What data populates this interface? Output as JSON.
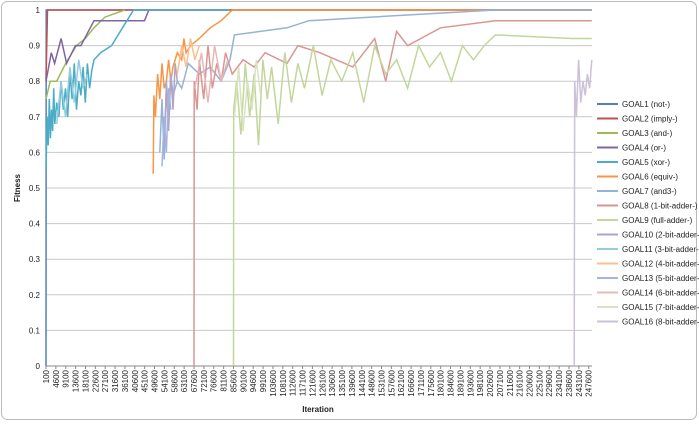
{
  "chart_data": {
    "type": "line",
    "xlabel": "Iteration",
    "ylabel": "Fitness",
    "xlim": [
      100,
      249100
    ],
    "ylim": [
      0,
      1
    ],
    "grid": true,
    "legend": "right",
    "xticks": [
      100,
      4600,
      9100,
      13600,
      18100,
      22600,
      27100,
      31600,
      36100,
      40600,
      45100,
      49600,
      54100,
      58600,
      63100,
      67600,
      72100,
      76600,
      81100,
      85600,
      90100,
      94600,
      99100,
      103600,
      108100,
      112600,
      117100,
      121600,
      126100,
      130600,
      135100,
      139600,
      144100,
      148600,
      153100,
      157600,
      162100,
      166600,
      171100,
      175600,
      180100,
      184600,
      189100,
      193600,
      198100,
      202600,
      207100,
      211600,
      216100,
      220600,
      225100,
      229600,
      234100,
      238600,
      243100,
      247600
    ],
    "yticks": [
      0,
      0.1,
      0.2,
      0.3,
      0.4,
      0.5,
      0.6,
      0.7,
      0.8,
      0.9,
      1
    ],
    "series": [
      {
        "name": "GOAL1 (not-)",
        "color": "#4f81bd",
        "x": [
          100,
          200,
          249000
        ],
        "values": [
          0,
          1,
          1
        ]
      },
      {
        "name": "GOAL2 (imply-)",
        "color": "#c0504d",
        "x": [
          100,
          800,
          249000
        ],
        "values": [
          0.8,
          1,
          1
        ]
      },
      {
        "name": "GOAL3 (and-)",
        "color": "#9bbb59",
        "x": [
          100,
          2000,
          5000,
          9100,
          14000,
          18000,
          22000,
          27000,
          36000
        ],
        "values": [
          0.75,
          0.8,
          0.8,
          0.85,
          0.9,
          0.92,
          0.95,
          0.98,
          1
        ]
      },
      {
        "name": "GOAL4 (or-)",
        "color": "#8064a2",
        "x": [
          100,
          2500,
          4000,
          7000,
          9500,
          13500,
          16000,
          22000,
          45000,
          47000
        ],
        "values": [
          0.8,
          0.88,
          0.85,
          0.92,
          0.85,
          0.9,
          0.9,
          0.97,
          0.97,
          1
        ]
      },
      {
        "name": "GOAL5 (xor-)",
        "color": "#4bacc6",
        "x": [
          100,
          600,
          1100,
          1600,
          2100,
          2600,
          3100,
          3600,
          4100,
          5000,
          6000,
          7000,
          8000,
          9000,
          10000,
          11000,
          12000,
          13000,
          14000,
          15000,
          16000,
          17000,
          18000,
          19000,
          20000,
          21000,
          22000,
          25000,
          30000,
          35000,
          40000,
          84000
        ],
        "values": [
          0.55,
          0.7,
          0.62,
          0.75,
          0.64,
          0.72,
          0.66,
          0.78,
          0.68,
          0.74,
          0.7,
          0.8,
          0.72,
          0.78,
          0.7,
          0.82,
          0.75,
          0.85,
          0.72,
          0.8,
          0.76,
          0.84,
          0.74,
          0.85,
          0.78,
          0.83,
          0.86,
          0.88,
          0.9,
          0.95,
          1,
          1
        ]
      },
      {
        "name": "GOAL6 (equiv-)",
        "color": "#f79646",
        "x": [
          49000,
          49300,
          50000,
          51000,
          52000,
          53000,
          54000,
          55000,
          56000,
          57000,
          58000,
          60000,
          62000,
          63000,
          64000,
          66000,
          70000,
          75000,
          80000,
          85000,
          249000
        ],
        "values": [
          0.54,
          0.76,
          0.7,
          0.82,
          0.75,
          0.85,
          0.78,
          0.8,
          0.86,
          0.8,
          0.84,
          0.88,
          0.86,
          0.92,
          0.88,
          0.9,
          0.92,
          0.95,
          0.97,
          1,
          1
        ]
      },
      {
        "name": "GOAL7 (and3-)",
        "color": "#95b3d7",
        "x": [
          52000,
          53000,
          54000,
          55000,
          56000,
          57000,
          58000,
          60000,
          62000,
          65000,
          70000,
          75000,
          80000,
          84000,
          86000,
          110000,
          120000,
          205000,
          249000
        ],
        "values": [
          0.6,
          0.75,
          0.58,
          0.8,
          0.7,
          0.82,
          0.76,
          0.8,
          0.78,
          0.85,
          0.82,
          0.84,
          0.8,
          0.86,
          0.93,
          0.95,
          0.97,
          1,
          1
        ]
      },
      {
        "name": "GOAL8 (1-bit-adder-)",
        "color": "#d99694",
        "x": [
          67600,
          67700,
          69000,
          70000,
          72000,
          74000,
          76000,
          78000,
          80000,
          82000,
          85000,
          90000,
          95000,
          100000,
          110000,
          115000,
          125000,
          140000,
          150000,
          155000,
          160000,
          165000,
          180000,
          205000,
          249000
        ],
        "values": [
          0,
          0.8,
          0.72,
          0.86,
          0.75,
          0.9,
          0.78,
          0.85,
          0.8,
          0.88,
          0.82,
          0.86,
          0.84,
          0.88,
          0.85,
          0.9,
          0.88,
          0.84,
          0.92,
          0.8,
          0.94,
          0.9,
          0.95,
          0.97,
          0.97
        ]
      },
      {
        "name": "GOAL9 (full-adder-)",
        "color": "#c3d69b",
        "x": [
          85600,
          85700,
          87000,
          89000,
          91000,
          93000,
          95000,
          97000,
          99000,
          101000,
          103000,
          106000,
          109000,
          112000,
          115000,
          118000,
          122000,
          126000,
          130000,
          135000,
          140000,
          145000,
          150000,
          155000,
          160000,
          165000,
          170000,
          175000,
          180000,
          185000,
          190000,
          195000,
          200000,
          205000,
          240000,
          249000
        ],
        "values": [
          0,
          0.72,
          0.8,
          0.65,
          0.85,
          0.7,
          0.82,
          0.62,
          0.86,
          0.75,
          0.84,
          0.68,
          0.88,
          0.74,
          0.85,
          0.78,
          0.9,
          0.76,
          0.86,
          0.8,
          0.88,
          0.74,
          0.9,
          0.82,
          0.86,
          0.78,
          0.9,
          0.84,
          0.88,
          0.8,
          0.9,
          0.86,
          0.9,
          0.93,
          0.92,
          0.92
        ]
      },
      {
        "name": "GOAL10 (2-bit-adder-)",
        "color": "#b3a2c7",
        "x": [
          54000,
          55000,
          56000,
          57000,
          58000,
          59000,
          60000
        ],
        "values": [
          0.62,
          0.78,
          0.66,
          0.82,
          0.72,
          0.85,
          0.8
        ]
      },
      {
        "name": "GOAL11 (3-bit-adder-)",
        "color": "#93cddd",
        "x": [
          5000,
          7000,
          9000,
          11000,
          13000,
          15000,
          17000,
          19000
        ],
        "values": [
          0.68,
          0.8,
          0.7,
          0.84,
          0.74,
          0.86,
          0.78,
          0.82
        ]
      },
      {
        "name": "GOAL12 (4-bit-adder-)",
        "color": "#fac08f",
        "x": [
          60000,
          62000,
          64000,
          66000,
          68000,
          70000
        ],
        "values": [
          0.82,
          0.9,
          0.84,
          0.92,
          0.86,
          0.9
        ]
      },
      {
        "name": "GOAL13 (5-bit-adder-)",
        "color": "#a5b4e0",
        "x": [
          53000,
          54000,
          55000,
          56000,
          57000
        ],
        "values": [
          0.56,
          0.7,
          0.6,
          0.78,
          0.72
        ]
      },
      {
        "name": "GOAL14 (6-bit-adder-)",
        "color": "#e6b9b8",
        "x": [
          68000,
          71000,
          74000,
          77000,
          80000,
          83000
        ],
        "values": [
          0.78,
          0.88,
          0.74,
          0.9,
          0.8,
          0.86
        ]
      },
      {
        "name": "GOAL15 (7-bit-adder-)",
        "color": "#d7e4bd",
        "x": [
          86000,
          88000,
          90000,
          92000,
          94000,
          96000,
          98000
        ],
        "values": [
          0.7,
          0.84,
          0.66,
          0.8,
          0.72,
          0.86,
          0.76
        ]
      },
      {
        "name": "GOAL16 (8-bit-adder-)",
        "color": "#ccc1da",
        "x": [
          241000,
          241200,
          242000,
          243000,
          244000,
          245000,
          246000,
          247000,
          248000,
          249000
        ],
        "values": [
          0,
          0.8,
          0.7,
          0.86,
          0.74,
          0.8,
          0.76,
          0.82,
          0.78,
          0.86
        ]
      }
    ]
  }
}
